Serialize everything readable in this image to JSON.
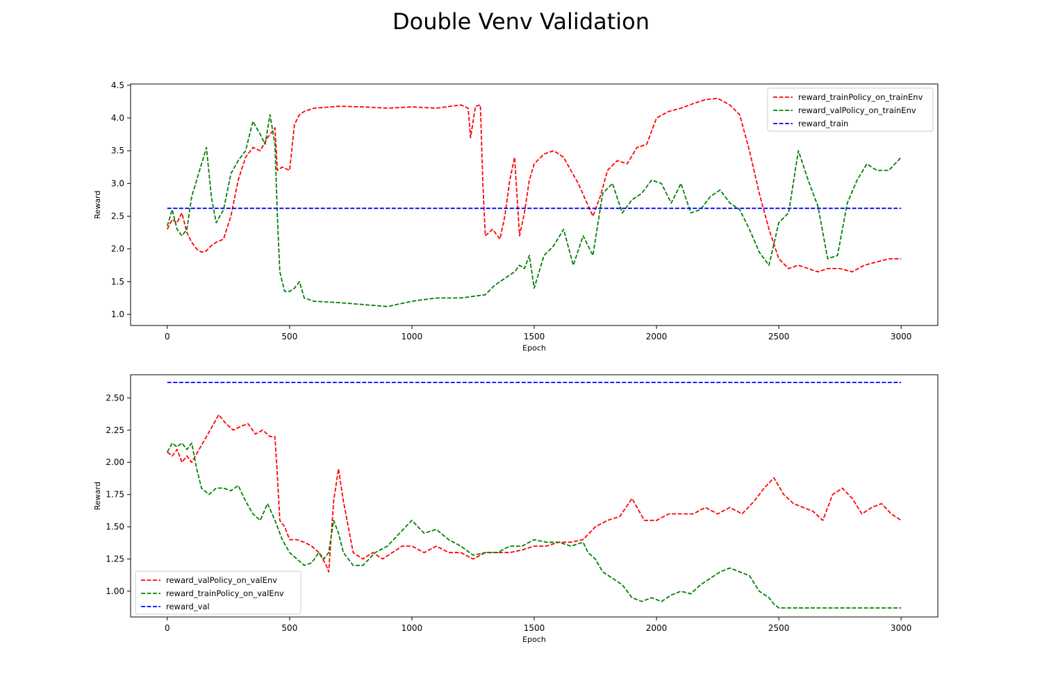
{
  "figure": {
    "title": "Double Venv Validation"
  },
  "chart_data": [
    {
      "type": "line",
      "xlabel": "Epoch",
      "ylabel": "Reward",
      "xlim": [
        -150,
        3150
      ],
      "ylim": [
        0.83,
        4.52
      ],
      "xticks": [
        "0",
        "500",
        "1000",
        "1500",
        "2000",
        "2500",
        "3000"
      ],
      "yticks": [
        "1.0",
        "1.5",
        "2.0",
        "2.5",
        "3.0",
        "3.5",
        "4.0",
        "4.5"
      ],
      "legend_position": "top-right",
      "grid": false,
      "series": [
        {
          "name": "reward_trainPolicy_on_trainEnv",
          "color": "#ff0000",
          "style": "dashed",
          "x": [
            0,
            20,
            40,
            60,
            80,
            100,
            120,
            140,
            160,
            180,
            200,
            230,
            260,
            290,
            320,
            350,
            380,
            410,
            440,
            450,
            470,
            500,
            520,
            540,
            560,
            600,
            700,
            800,
            900,
            1000,
            1100,
            1200,
            1230,
            1240,
            1260,
            1280,
            1290,
            1300,
            1330,
            1360,
            1380,
            1400,
            1420,
            1440,
            1460,
            1480,
            1500,
            1540,
            1580,
            1620,
            1650,
            1680,
            1710,
            1740,
            1770,
            1800,
            1840,
            1880,
            1920,
            1960,
            2000,
            2050,
            2100,
            2150,
            2200,
            2250,
            2300,
            2340,
            2380,
            2420,
            2460,
            2500,
            2540,
            2580,
            2620,
            2660,
            2700,
            2750,
            2800,
            2850,
            2900,
            2950,
            3000
          ],
          "y": [
            2.3,
            2.45,
            2.4,
            2.55,
            2.25,
            2.1,
            2.0,
            1.95,
            1.97,
            2.05,
            2.1,
            2.15,
            2.5,
            3.05,
            3.4,
            3.55,
            3.5,
            3.7,
            3.85,
            3.2,
            3.25,
            3.2,
            3.9,
            4.05,
            4.1,
            4.15,
            4.18,
            4.17,
            4.15,
            4.17,
            4.15,
            4.2,
            4.15,
            3.7,
            4.18,
            4.2,
            3.0,
            2.2,
            2.3,
            2.15,
            2.5,
            3.05,
            3.4,
            2.2,
            2.55,
            3.05,
            3.3,
            3.45,
            3.5,
            3.4,
            3.2,
            3.0,
            2.75,
            2.5,
            2.8,
            3.2,
            3.35,
            3.3,
            3.55,
            3.6,
            4.0,
            4.1,
            4.15,
            4.22,
            4.28,
            4.3,
            4.2,
            4.05,
            3.5,
            2.85,
            2.3,
            1.85,
            1.7,
            1.75,
            1.7,
            1.65,
            1.7,
            1.7,
            1.65,
            1.75,
            1.8,
            1.85,
            1.85
          ]
        },
        {
          "name": "reward_valPolicy_on_trainEnv",
          "color": "#008000",
          "style": "dashed",
          "x": [
            0,
            20,
            40,
            60,
            80,
            100,
            120,
            140,
            160,
            180,
            200,
            230,
            260,
            290,
            320,
            350,
            380,
            400,
            420,
            440,
            450,
            460,
            480,
            500,
            520,
            540,
            560,
            600,
            700,
            800,
            900,
            1000,
            1100,
            1200,
            1300,
            1340,
            1380,
            1420,
            1440,
            1460,
            1480,
            1500,
            1540,
            1580,
            1620,
            1660,
            1700,
            1740,
            1780,
            1820,
            1860,
            1900,
            1940,
            1980,
            2020,
            2060,
            2100,
            2140,
            2180,
            2220,
            2260,
            2300,
            2340,
            2380,
            2420,
            2460,
            2500,
            2540,
            2580,
            2620,
            2660,
            2700,
            2740,
            2780,
            2820,
            2860,
            2900,
            2950,
            3000
          ],
          "y": [
            2.35,
            2.6,
            2.3,
            2.2,
            2.3,
            2.8,
            3.05,
            3.3,
            3.55,
            2.8,
            2.4,
            2.6,
            3.15,
            3.35,
            3.5,
            3.95,
            3.75,
            3.6,
            4.05,
            3.6,
            2.5,
            1.65,
            1.35,
            1.35,
            1.4,
            1.5,
            1.25,
            1.2,
            1.18,
            1.15,
            1.12,
            1.2,
            1.25,
            1.25,
            1.3,
            1.45,
            1.55,
            1.65,
            1.75,
            1.7,
            1.9,
            1.4,
            1.9,
            2.05,
            2.3,
            1.75,
            2.2,
            1.9,
            2.85,
            3.0,
            2.55,
            2.75,
            2.85,
            3.05,
            3.0,
            2.7,
            3.0,
            2.55,
            2.6,
            2.8,
            2.9,
            2.7,
            2.6,
            2.3,
            1.95,
            1.75,
            2.4,
            2.55,
            3.5,
            3.05,
            2.65,
            1.85,
            1.9,
            2.7,
            3.05,
            3.3,
            3.2,
            3.2,
            3.4
          ]
        },
        {
          "name": "reward_train",
          "color": "#0000ff",
          "style": "dashed",
          "x": [
            0,
            3000
          ],
          "y": [
            2.62,
            2.62
          ]
        }
      ]
    },
    {
      "type": "line",
      "xlabel": "Epoch",
      "ylabel": "Reward",
      "xlim": [
        -150,
        3150
      ],
      "ylim": [
        0.8,
        2.68
      ],
      "xticks": [
        "0",
        "500",
        "1000",
        "1500",
        "2000",
        "2500",
        "3000"
      ],
      "yticks": [
        "1.00",
        "1.25",
        "1.50",
        "1.75",
        "2.00",
        "2.25",
        "2.50"
      ],
      "legend_position": "bottom-left",
      "grid": false,
      "series": [
        {
          "name": "reward_valPolicy_on_valEnv",
          "color": "#ff0000",
          "style": "dashed",
          "x": [
            0,
            20,
            40,
            60,
            80,
            100,
            130,
            160,
            190,
            210,
            240,
            270,
            300,
            330,
            360,
            390,
            420,
            440,
            450,
            460,
            480,
            500,
            530,
            560,
            590,
            620,
            650,
            660,
            680,
            700,
            720,
            760,
            800,
            840,
            880,
            920,
            960,
            1000,
            1050,
            1100,
            1150,
            1200,
            1250,
            1300,
            1350,
            1400,
            1450,
            1500,
            1550,
            1600,
            1650,
            1700,
            1750,
            1800,
            1850,
            1900,
            1950,
            2000,
            2050,
            2100,
            2150,
            2200,
            2250,
            2300,
            2350,
            2400,
            2440,
            2480,
            2520,
            2560,
            2600,
            2640,
            2680,
            2720,
            2760,
            2800,
            2840,
            2880,
            2920,
            2960,
            3000
          ],
          "y": [
            2.08,
            2.05,
            2.1,
            2.0,
            2.05,
            2.0,
            2.1,
            2.2,
            2.3,
            2.37,
            2.3,
            2.25,
            2.28,
            2.3,
            2.22,
            2.25,
            2.2,
            2.2,
            1.9,
            1.55,
            1.5,
            1.4,
            1.4,
            1.38,
            1.35,
            1.3,
            1.2,
            1.15,
            1.7,
            1.95,
            1.7,
            1.3,
            1.25,
            1.3,
            1.25,
            1.3,
            1.35,
            1.35,
            1.3,
            1.35,
            1.3,
            1.3,
            1.25,
            1.3,
            1.3,
            1.3,
            1.32,
            1.35,
            1.35,
            1.38,
            1.38,
            1.4,
            1.5,
            1.55,
            1.58,
            1.72,
            1.55,
            1.55,
            1.6,
            1.6,
            1.6,
            1.65,
            1.6,
            1.65,
            1.6,
            1.7,
            1.8,
            1.88,
            1.75,
            1.68,
            1.65,
            1.62,
            1.55,
            1.75,
            1.8,
            1.72,
            1.6,
            1.65,
            1.68,
            1.6,
            1.55
          ]
        },
        {
          "name": "reward_trainPolicy_on_valEnv",
          "color": "#008000",
          "style": "dashed",
          "x": [
            0,
            20,
            40,
            60,
            80,
            100,
            120,
            140,
            170,
            200,
            230,
            260,
            290,
            320,
            350,
            380,
            410,
            440,
            470,
            500,
            530,
            560,
            590,
            620,
            640,
            660,
            680,
            700,
            720,
            740,
            760,
            800,
            850,
            900,
            950,
            1000,
            1050,
            1100,
            1150,
            1200,
            1250,
            1300,
            1350,
            1400,
            1450,
            1500,
            1550,
            1600,
            1650,
            1700,
            1720,
            1750,
            1780,
            1820,
            1860,
            1900,
            1940,
            1980,
            2020,
            2060,
            2100,
            2140,
            2180,
            2220,
            2260,
            2300,
            2340,
            2380,
            2420,
            2460,
            2480,
            2500,
            2550,
            2600,
            2700,
            2800,
            2900,
            3000
          ],
          "y": [
            2.08,
            2.15,
            2.12,
            2.15,
            2.1,
            2.15,
            1.95,
            1.8,
            1.75,
            1.8,
            1.8,
            1.78,
            1.82,
            1.7,
            1.6,
            1.55,
            1.68,
            1.55,
            1.4,
            1.3,
            1.25,
            1.2,
            1.22,
            1.3,
            1.25,
            1.3,
            1.55,
            1.45,
            1.3,
            1.25,
            1.2,
            1.2,
            1.3,
            1.35,
            1.45,
            1.55,
            1.45,
            1.48,
            1.4,
            1.35,
            1.28,
            1.3,
            1.3,
            1.35,
            1.35,
            1.4,
            1.38,
            1.38,
            1.35,
            1.38,
            1.3,
            1.25,
            1.15,
            1.1,
            1.05,
            0.95,
            0.92,
            0.95,
            0.92,
            0.97,
            1.0,
            0.98,
            1.05,
            1.1,
            1.15,
            1.18,
            1.15,
            1.12,
            1.0,
            0.95,
            0.9,
            0.87,
            0.87,
            0.87,
            0.87,
            0.87,
            0.87,
            0.87
          ]
        },
        {
          "name": "reward_val",
          "color": "#0000ff",
          "style": "dashed",
          "x": [
            0,
            3000
          ],
          "y": [
            2.62,
            2.62
          ]
        }
      ]
    }
  ]
}
